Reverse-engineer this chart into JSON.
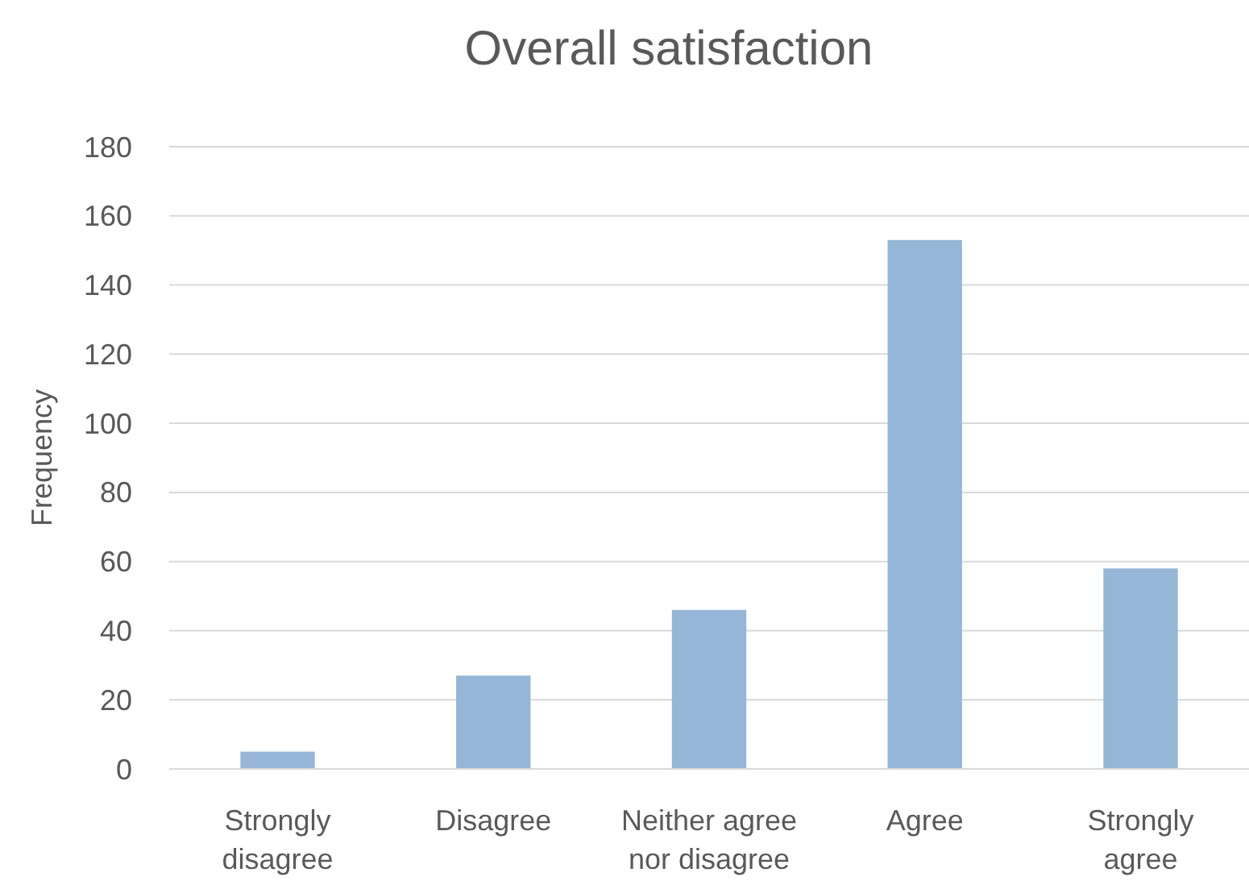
{
  "chart_data": {
    "type": "bar",
    "title": "Overall satisfaction",
    "ylabel": "Frequency",
    "categories": [
      "Strongly disagree",
      "Disagree",
      "Neither agree nor disagree",
      "Agree",
      "Strongly agree"
    ],
    "values": [
      5,
      27,
      46,
      153,
      58
    ],
    "color": "#95b6d6",
    "ylim": [
      0,
      180
    ],
    "yticks": [
      0,
      20,
      40,
      60,
      80,
      100,
      120,
      140,
      160,
      180
    ],
    "grid": "y"
  }
}
